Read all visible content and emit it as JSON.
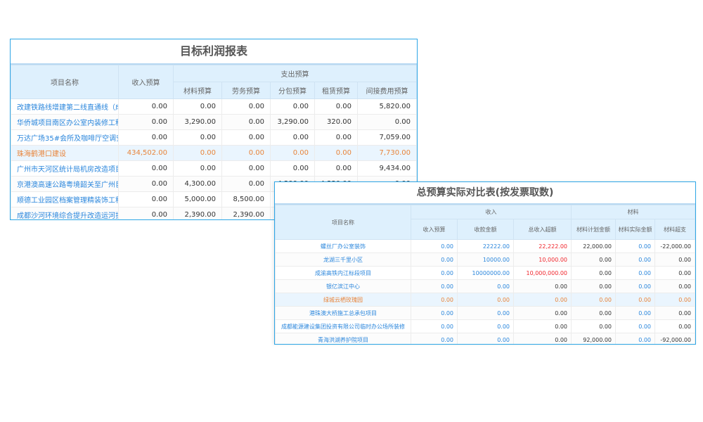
{
  "profit_report": {
    "title": "目标利润报表",
    "headers": {
      "name": "项目名称",
      "income": "收入预算",
      "expense_group": "支出预算",
      "expense": [
        "材料预算",
        "劳务预算",
        "分包预算",
        "租赁预算",
        "间接费用预算"
      ]
    },
    "rows": [
      {
        "name": "改建铁路线增建第二线直通线（成",
        "values": [
          "0.00",
          "0.00",
          "0.00",
          "0.00",
          "0.00",
          "5,820.00"
        ]
      },
      {
        "name": "华侨城项目南区办公室内装修工程",
        "values": [
          "0.00",
          "3,290.00",
          "0.00",
          "3,290.00",
          "320.00",
          "0.00"
        ]
      },
      {
        "name": "万达广场35#会所及咖啡厅空调安",
        "values": [
          "0.00",
          "0.00",
          "0.00",
          "0.00",
          "0.00",
          "7,059.00"
        ]
      },
      {
        "name": "珠海鹤港口建设",
        "values": [
          "434,502.00",
          "0.00",
          "0.00",
          "0.00",
          "0.00",
          "7,730.00"
        ],
        "highlight": true
      },
      {
        "name": "广州市天河区统计局机房改造项目",
        "values": [
          "0.00",
          "0.00",
          "0.00",
          "0.00",
          "0.00",
          "9,434.00"
        ]
      },
      {
        "name": "京港澳高速公路粤境韶关至广州巨",
        "values": [
          "0.00",
          "4,300.00",
          "0.00",
          "4,299.00",
          "4,330.00",
          "0.00"
        ]
      },
      {
        "name": "顺德工业园区档案管理精装饰工程",
        "values": [
          "0.00",
          "5,000.00",
          "8,500.00",
          "",
          "",
          ""
        ]
      },
      {
        "name": "成都沙河环境综合提升改造运河护",
        "values": [
          "0.00",
          "2,390.00",
          "2,390.00",
          "",
          "",
          ""
        ]
      }
    ]
  },
  "budget_compare": {
    "title": "总预算实际对比表(按发票取数)",
    "headers": {
      "name": "项目名称",
      "income_group": "收入",
      "material_group": "材料",
      "income": [
        "收入预算",
        "收款金额",
        "总收入超额"
      ],
      "material": [
        "材料计划金额",
        "材料实际金额",
        "材料超支"
      ]
    },
    "rows": [
      {
        "name": "螺丝厂办公室装饰",
        "values": [
          "0.00",
          "22222.00",
          "22,222.00",
          "22,000.00",
          "0.00",
          "-22,000.00"
        ],
        "over": true
      },
      {
        "name": "龙湖三千里小区",
        "values": [
          "0.00",
          "10000.00",
          "10,000.00",
          "0.00",
          "0.00",
          "0.00"
        ],
        "over": true
      },
      {
        "name": "成渝高铁内江标段项目",
        "values": [
          "0.00",
          "10000000.00",
          "10,000,000.00",
          "0.00",
          "0.00",
          "0.00"
        ],
        "over": true
      },
      {
        "name": "银亿滨江中心",
        "values": [
          "0.00",
          "0.00",
          "0.00",
          "0.00",
          "0.00",
          "0.00"
        ]
      },
      {
        "name": "绿城云栖玫瑰园",
        "values": [
          "0.00",
          "0.00",
          "0.00",
          "0.00",
          "0.00",
          "0.00"
        ],
        "highlight": true
      },
      {
        "name": "港珠澳大桥施工总承包项目",
        "values": [
          "0.00",
          "0.00",
          "0.00",
          "0.00",
          "0.00",
          "0.00"
        ]
      },
      {
        "name": "成都能源建设集团投资有限公司临时办公场所装修",
        "values": [
          "0.00",
          "0.00",
          "0.00",
          "0.00",
          "0.00",
          "0.00"
        ]
      },
      {
        "name": "青海洪湖养护院项目",
        "values": [
          "0.00",
          "0.00",
          "0.00",
          "92,000.00",
          "0.00",
          "-92,000.00"
        ]
      }
    ]
  },
  "colors": {
    "link": "#2a86dc",
    "highlight": "#e8843a",
    "over": "#f0262c",
    "header_bg": "#def0fd",
    "border": "#2ea6e6"
  }
}
